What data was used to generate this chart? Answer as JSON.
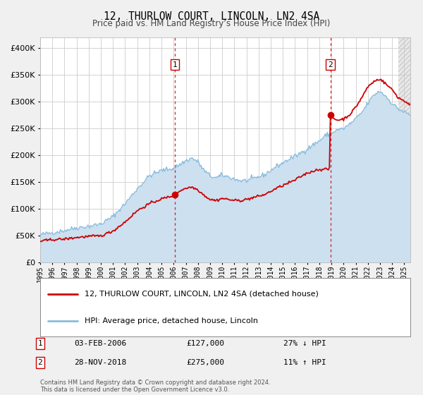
{
  "title": "12, THURLOW COURT, LINCOLN, LN2 4SA",
  "subtitle": "Price paid vs. HM Land Registry’s House Price Index (HPI)",
  "legend_property": "12, THURLOW COURT, LINCOLN, LN2 4SA (detached house)",
  "legend_hpi": "HPI: Average price, detached house, Lincoln",
  "sale1_date": "03-FEB-2006",
  "sale1_price": 127000,
  "sale1_note": "27% ↓ HPI",
  "sale2_date": "28-NOV-2018",
  "sale2_price": 275000,
  "sale2_note": "11% ↑ HPI",
  "sale1_x": 2006.09,
  "sale2_x": 2018.91,
  "sale1_y": 127000,
  "sale2_y": 275000,
  "footer1": "Contains HM Land Registry data © Crown copyright and database right 2024.",
  "footer2": "This data is licensed under the Open Government Licence v3.0.",
  "property_color": "#cc0000",
  "hpi_color": "#88bbdd",
  "hpi_fill_color": "#cce0f0",
  "bg_color": "#f0f0f0",
  "plot_bg_color": "#ffffff",
  "grid_color": "#cccccc",
  "vline_color": "#cc0000",
  "xlim_left": 1995.0,
  "xlim_right": 2025.5,
  "ylim_bottom": 0,
  "ylim_top": 420000,
  "hatch_start": 2024.5,
  "yticks": [
    0,
    50000,
    100000,
    150000,
    200000,
    250000,
    300000,
    350000,
    400000
  ]
}
